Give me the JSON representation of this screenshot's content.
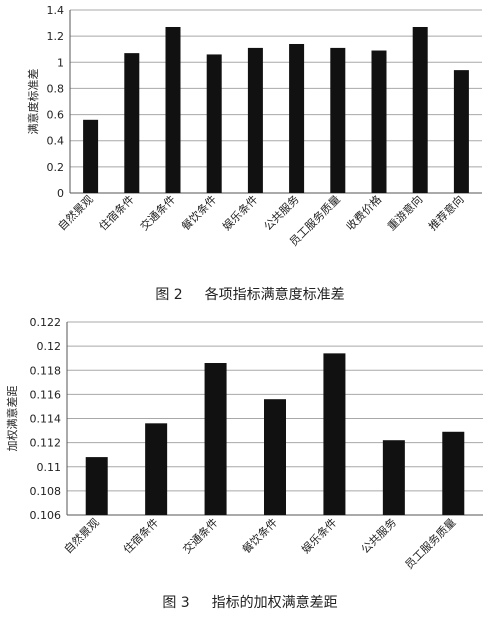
{
  "chart_data": [
    {
      "type": "bar",
      "title": "",
      "caption_num": "图 2",
      "caption_text": "各项指标满意度标准差",
      "ylabel": "满意度标准差",
      "ylim": [
        0,
        1.4
      ],
      "ytick_labels": [
        "0",
        "0.2",
        "0.4",
        "0.6",
        "0.8",
        "1",
        "1.2",
        "1.4"
      ],
      "categories": [
        "自然景观",
        "住宿条件",
        "交通条件",
        "餐饮条件",
        "娱乐条件",
        "公共服务",
        "员工服务质量",
        "收费价格",
        "重游意向",
        "推荐意向"
      ],
      "values": [
        0.56,
        1.07,
        1.27,
        1.06,
        1.11,
        1.14,
        1.11,
        1.09,
        1.27,
        0.94
      ],
      "bar_color": "#111111",
      "grid": "horizontal"
    },
    {
      "type": "bar",
      "title": "",
      "caption_num": "图 3",
      "caption_text": "指标的加权满意差距",
      "ylabel": "加权满意差距",
      "ylim": [
        0.106,
        0.122
      ],
      "ytick_labels": [
        "0.106",
        "0.108",
        "0.11",
        "0.112",
        "0.114",
        "0.116",
        "0.118",
        "0.12",
        "0.122"
      ],
      "categories": [
        "自然景观",
        "住宿条件",
        "交通条件",
        "餐饮条件",
        "娱乐条件",
        "公共服务",
        "员工服务质量"
      ],
      "values": [
        0.1108,
        0.1136,
        0.1186,
        0.1156,
        0.1194,
        0.1122,
        0.1129
      ],
      "bar_color": "#111111",
      "grid": "horizontal"
    }
  ]
}
